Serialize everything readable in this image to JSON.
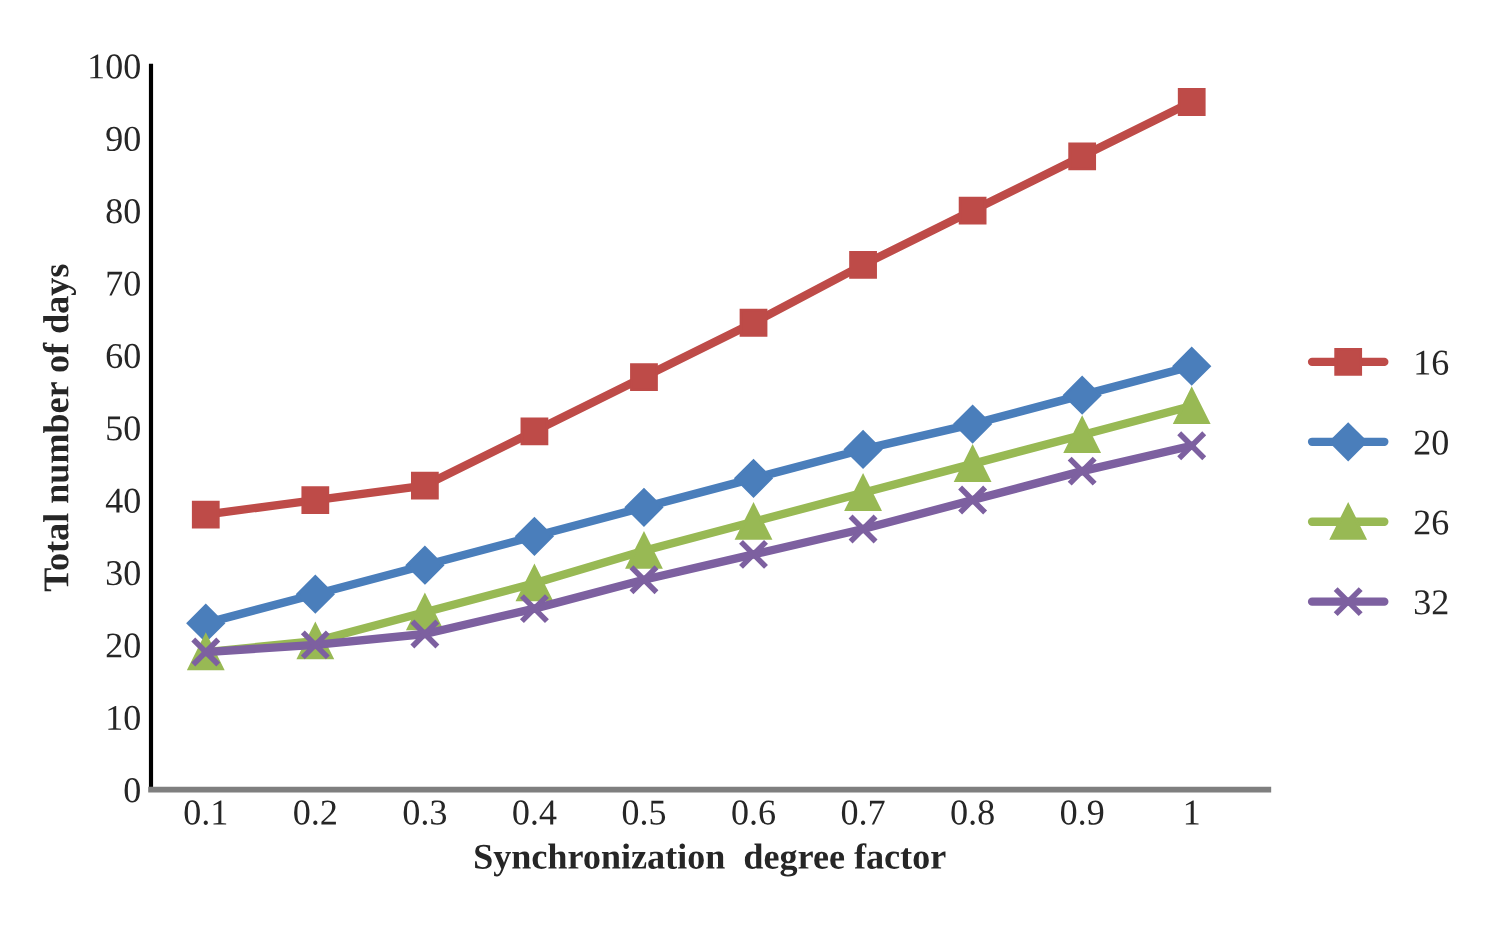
{
  "chart_data": {
    "type": "line",
    "xlabel": "Synchronization  degree factor",
    "ylabel": "Total number of days",
    "categories": [
      "0.1",
      "0.2",
      "0.3",
      "0.4",
      "0.5",
      "0.6",
      "0.7",
      "0.8",
      "0.9",
      "1"
    ],
    "ylim": [
      0,
      100
    ],
    "yticks": [
      0,
      10,
      20,
      30,
      40,
      50,
      60,
      70,
      80,
      90,
      100
    ],
    "grid": false,
    "legend": "right",
    "series": [
      {
        "name": "16",
        "color": "#be4b48",
        "marker": "square",
        "values": [
          38,
          40,
          42,
          49.5,
          57,
          64.5,
          72.5,
          80,
          87.5,
          95
        ]
      },
      {
        "name": "20",
        "color": "#4a7ebb",
        "marker": "diamond",
        "values": [
          23,
          27,
          31,
          35,
          39,
          43,
          47,
          50.5,
          54.5,
          58.5
        ]
      },
      {
        "name": "26",
        "color": "#98b954",
        "marker": "triangle",
        "values": [
          19,
          20.5,
          24.5,
          28.5,
          33,
          37,
          41,
          45,
          49,
          53
        ]
      },
      {
        "name": "32",
        "color": "#7d60a0",
        "marker": "cross",
        "values": [
          19,
          20,
          21.5,
          25,
          29,
          32.5,
          36,
          40,
          44,
          47.5
        ]
      }
    ]
  }
}
